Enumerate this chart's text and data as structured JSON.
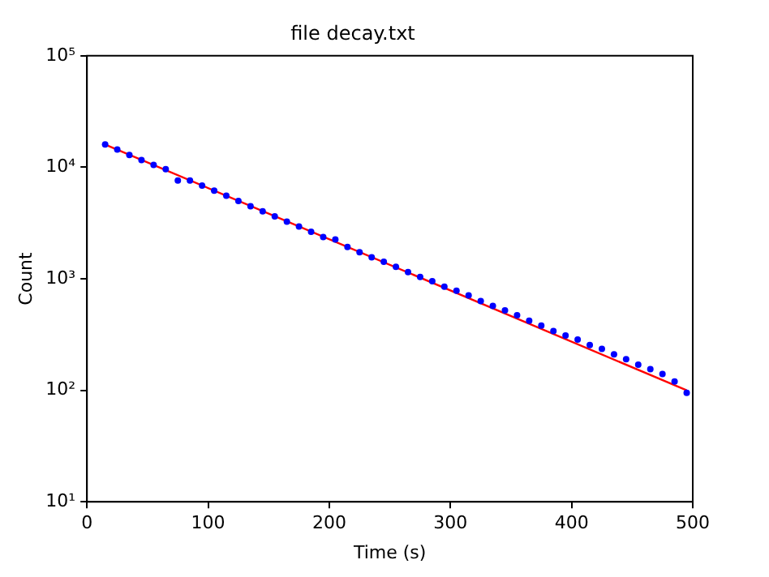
{
  "chart_data": {
    "type": "scatter",
    "title": "file decay.txt",
    "xlabel": "Time (s)",
    "ylabel": "Count",
    "log": "y",
    "grid": false,
    "legend": false,
    "xlim": [
      0,
      500
    ],
    "xticks": [
      0,
      100,
      200,
      300,
      400,
      500
    ],
    "ylim": [
      10,
      100000
    ],
    "yticks": [
      {
        "value": 10,
        "label": "10¹"
      },
      {
        "value": 100,
        "label": "10²"
      },
      {
        "value": 1000,
        "label": "10³"
      },
      {
        "value": 10000,
        "label": "10⁴"
      },
      {
        "value": 100000,
        "label": "10⁵"
      }
    ],
    "series": [
      {
        "type": "scatter",
        "marker": "circle",
        "color": "#0000ff",
        "x": [
          15,
          25,
          35,
          45,
          55,
          65,
          75,
          85,
          95,
          105,
          115,
          125,
          135,
          145,
          155,
          165,
          175,
          185,
          195,
          205,
          215,
          225,
          235,
          245,
          255,
          265,
          275,
          285,
          295,
          305,
          315,
          325,
          335,
          345,
          355,
          365,
          375,
          385,
          395,
          405,
          415,
          425,
          435,
          445,
          455,
          465,
          475,
          485,
          495
        ],
        "values": [
          16000,
          14400,
          12900,
          11600,
          10500,
          9600,
          7600,
          7600,
          6860,
          6170,
          5550,
          4990,
          4480,
          4030,
          3630,
          3260,
          2940,
          2640,
          2370,
          2250,
          1930,
          1730,
          1560,
          1420,
          1280,
          1150,
          1040,
          950,
          850,
          780,
          710,
          630,
          570,
          520,
          470,
          420,
          380,
          340,
          310,
          285,
          255,
          235,
          210,
          190,
          170,
          155,
          140,
          120,
          95
        ]
      },
      {
        "type": "line",
        "marker": "none",
        "line_style": "solid",
        "color": "#ff0000",
        "x": [
          15,
          495
        ],
        "values": [
          16000,
          100
        ]
      }
    ]
  }
}
